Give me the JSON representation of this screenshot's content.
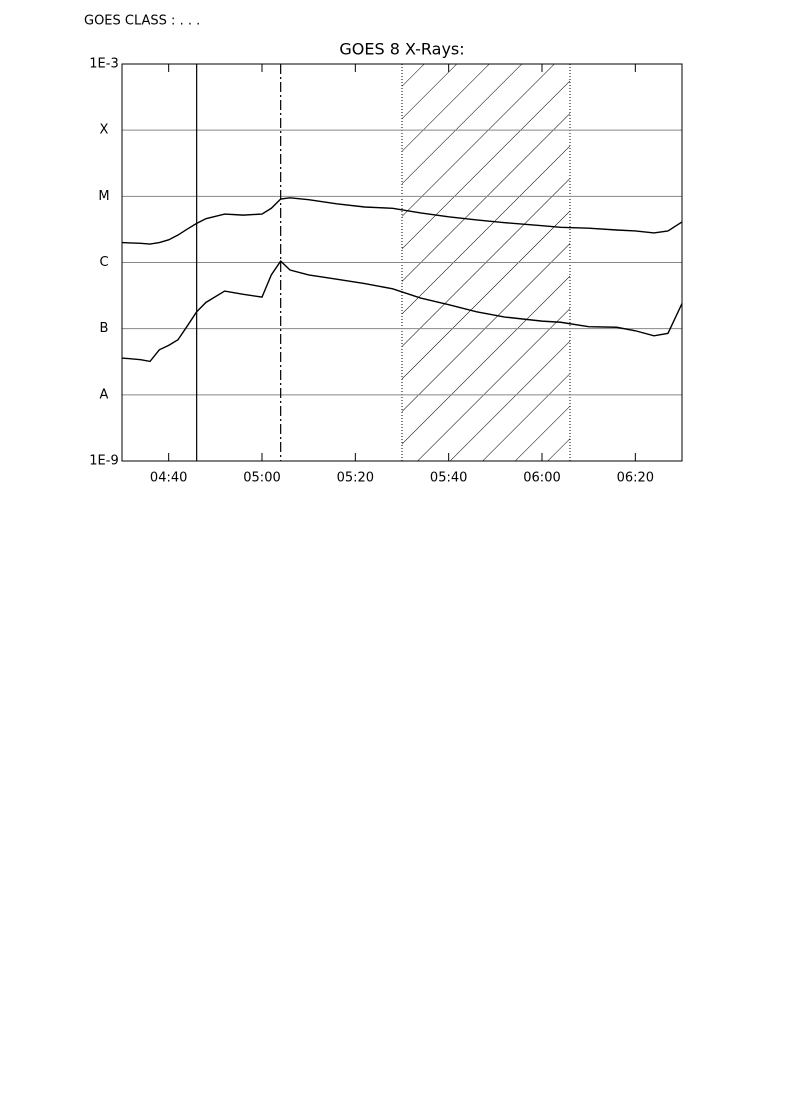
{
  "header": "GOES CLASS : . . .",
  "chart_data": {
    "type": "line",
    "title": "GOES 8 X-Rays:",
    "log_scale": true,
    "grid": true,
    "xlim": [
      "04:30",
      "06:30"
    ],
    "xticks": [
      "04:40",
      "05:00",
      "05:20",
      "05:40",
      "06:00",
      "06:20"
    ],
    "ylim": [
      1e-09,
      0.001
    ],
    "yticks": [
      {
        "value": 1e-09,
        "label": "1E-9"
      },
      {
        "value": 1e-08,
        "label": "A"
      },
      {
        "value": 1e-07,
        "label": "B"
      },
      {
        "value": 1e-06,
        "label": "C"
      },
      {
        "value": 1e-05,
        "label": "M"
      },
      {
        "value": 0.0001,
        "label": "X"
      },
      {
        "value": 0.001,
        "label": "1E-3"
      }
    ],
    "x": [
      "04:30",
      "04:34",
      "04:36",
      "04:38",
      "04:40",
      "04:42",
      "04:44",
      "04:46",
      "04:48",
      "04:52",
      "04:56",
      "05:00",
      "05:02",
      "05:04",
      "05:06",
      "05:10",
      "05:16",
      "05:22",
      "05:28",
      "05:34",
      "05:40",
      "05:46",
      "05:52",
      "06:00",
      "06:04",
      "06:10",
      "06:16",
      "06:20",
      "06:24",
      "06:27",
      "06:30"
    ],
    "series": [
      {
        "color": "#000000",
        "values": [
          2e-06,
          1.95e-06,
          1.9e-06,
          2e-06,
          2.2e-06,
          2.6e-06,
          3.2e-06,
          3.9e-06,
          4.6e-06,
          5.4e-06,
          5.2e-06,
          5.4e-06,
          6.6e-06,
          9.1e-06,
          9.5e-06,
          8.9e-06,
          7.7e-06,
          6.9e-06,
          6.6e-06,
          5.6e-06,
          4.9e-06,
          4.4e-06,
          4e-06,
          3.6e-06,
          3.4e-06,
          3.3e-06,
          3.1e-06,
          3e-06,
          2.8e-06,
          3e-06,
          4.1e-06
        ]
      },
      {
        "color": "#000000",
        "values": [
          3.6e-08,
          3.4e-08,
          3.2e-08,
          4.8e-08,
          5.6e-08,
          6.8e-08,
          1.1e-07,
          1.8e-07,
          2.5e-07,
          3.7e-07,
          3.3e-07,
          3e-07,
          6.5e-07,
          1.05e-06,
          7.7e-07,
          6.5e-07,
          5.6e-07,
          4.8e-07,
          4e-07,
          2.9e-07,
          2.3e-07,
          1.8e-07,
          1.5e-07,
          1.3e-07,
          1.25e-07,
          1.07e-07,
          1.05e-07,
          9.3e-08,
          7.8e-08,
          8.5e-08,
          2.4e-07
        ]
      }
    ],
    "vlines": [
      {
        "x": "04:46",
        "style": "solid"
      },
      {
        "x": "05:04",
        "style": "dashed"
      }
    ],
    "shade": [
      "05:30",
      "06:06"
    ]
  }
}
